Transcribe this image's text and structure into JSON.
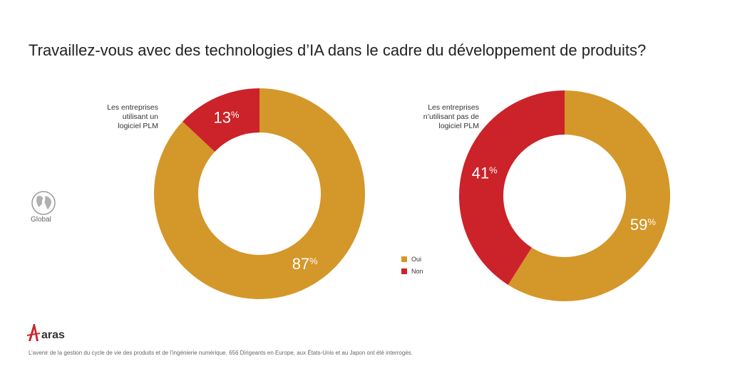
{
  "title": "Travaillez-vous avec des technologies d’IA dans le cadre du développement de produits?",
  "globe": {
    "icon": "globe-icon",
    "label": "Global"
  },
  "legend": [
    {
      "label": "Oui",
      "color": "#D4972A"
    },
    {
      "label": "Non",
      "color": "#CC2229"
    }
  ],
  "colors": {
    "oui": "#D4972A",
    "non": "#CC2229"
  },
  "logo": {
    "text": "aras",
    "icon": "aras-logo-icon"
  },
  "footnote": "L’avenir de la gestion du cycle de vie des produits et de l’ingénierie numérique. 656 Dirigeants en Europe, aux États-Unis et au Japon ont été interrogés.",
  "chart_data": [
    {
      "type": "pie",
      "title": "Les entreprises utilisant un logiciel PLM",
      "title_lines": [
        "Les entreprises",
        "utilisant un",
        "logiciel PLM"
      ],
      "categories": [
        "Oui",
        "Non"
      ],
      "values": [
        87,
        13
      ],
      "labels": [
        "87%",
        "13%"
      ],
      "donut": true
    },
    {
      "type": "pie",
      "title": "Les entreprises n’utilisant pas de logiciel PLM",
      "title_lines": [
        "Les entreprises",
        "n’utilisant pas de",
        "logiciel PLM"
      ],
      "categories": [
        "Oui",
        "Non"
      ],
      "values": [
        59,
        41
      ],
      "labels": [
        "59%",
        "41%"
      ],
      "donut": true
    }
  ]
}
